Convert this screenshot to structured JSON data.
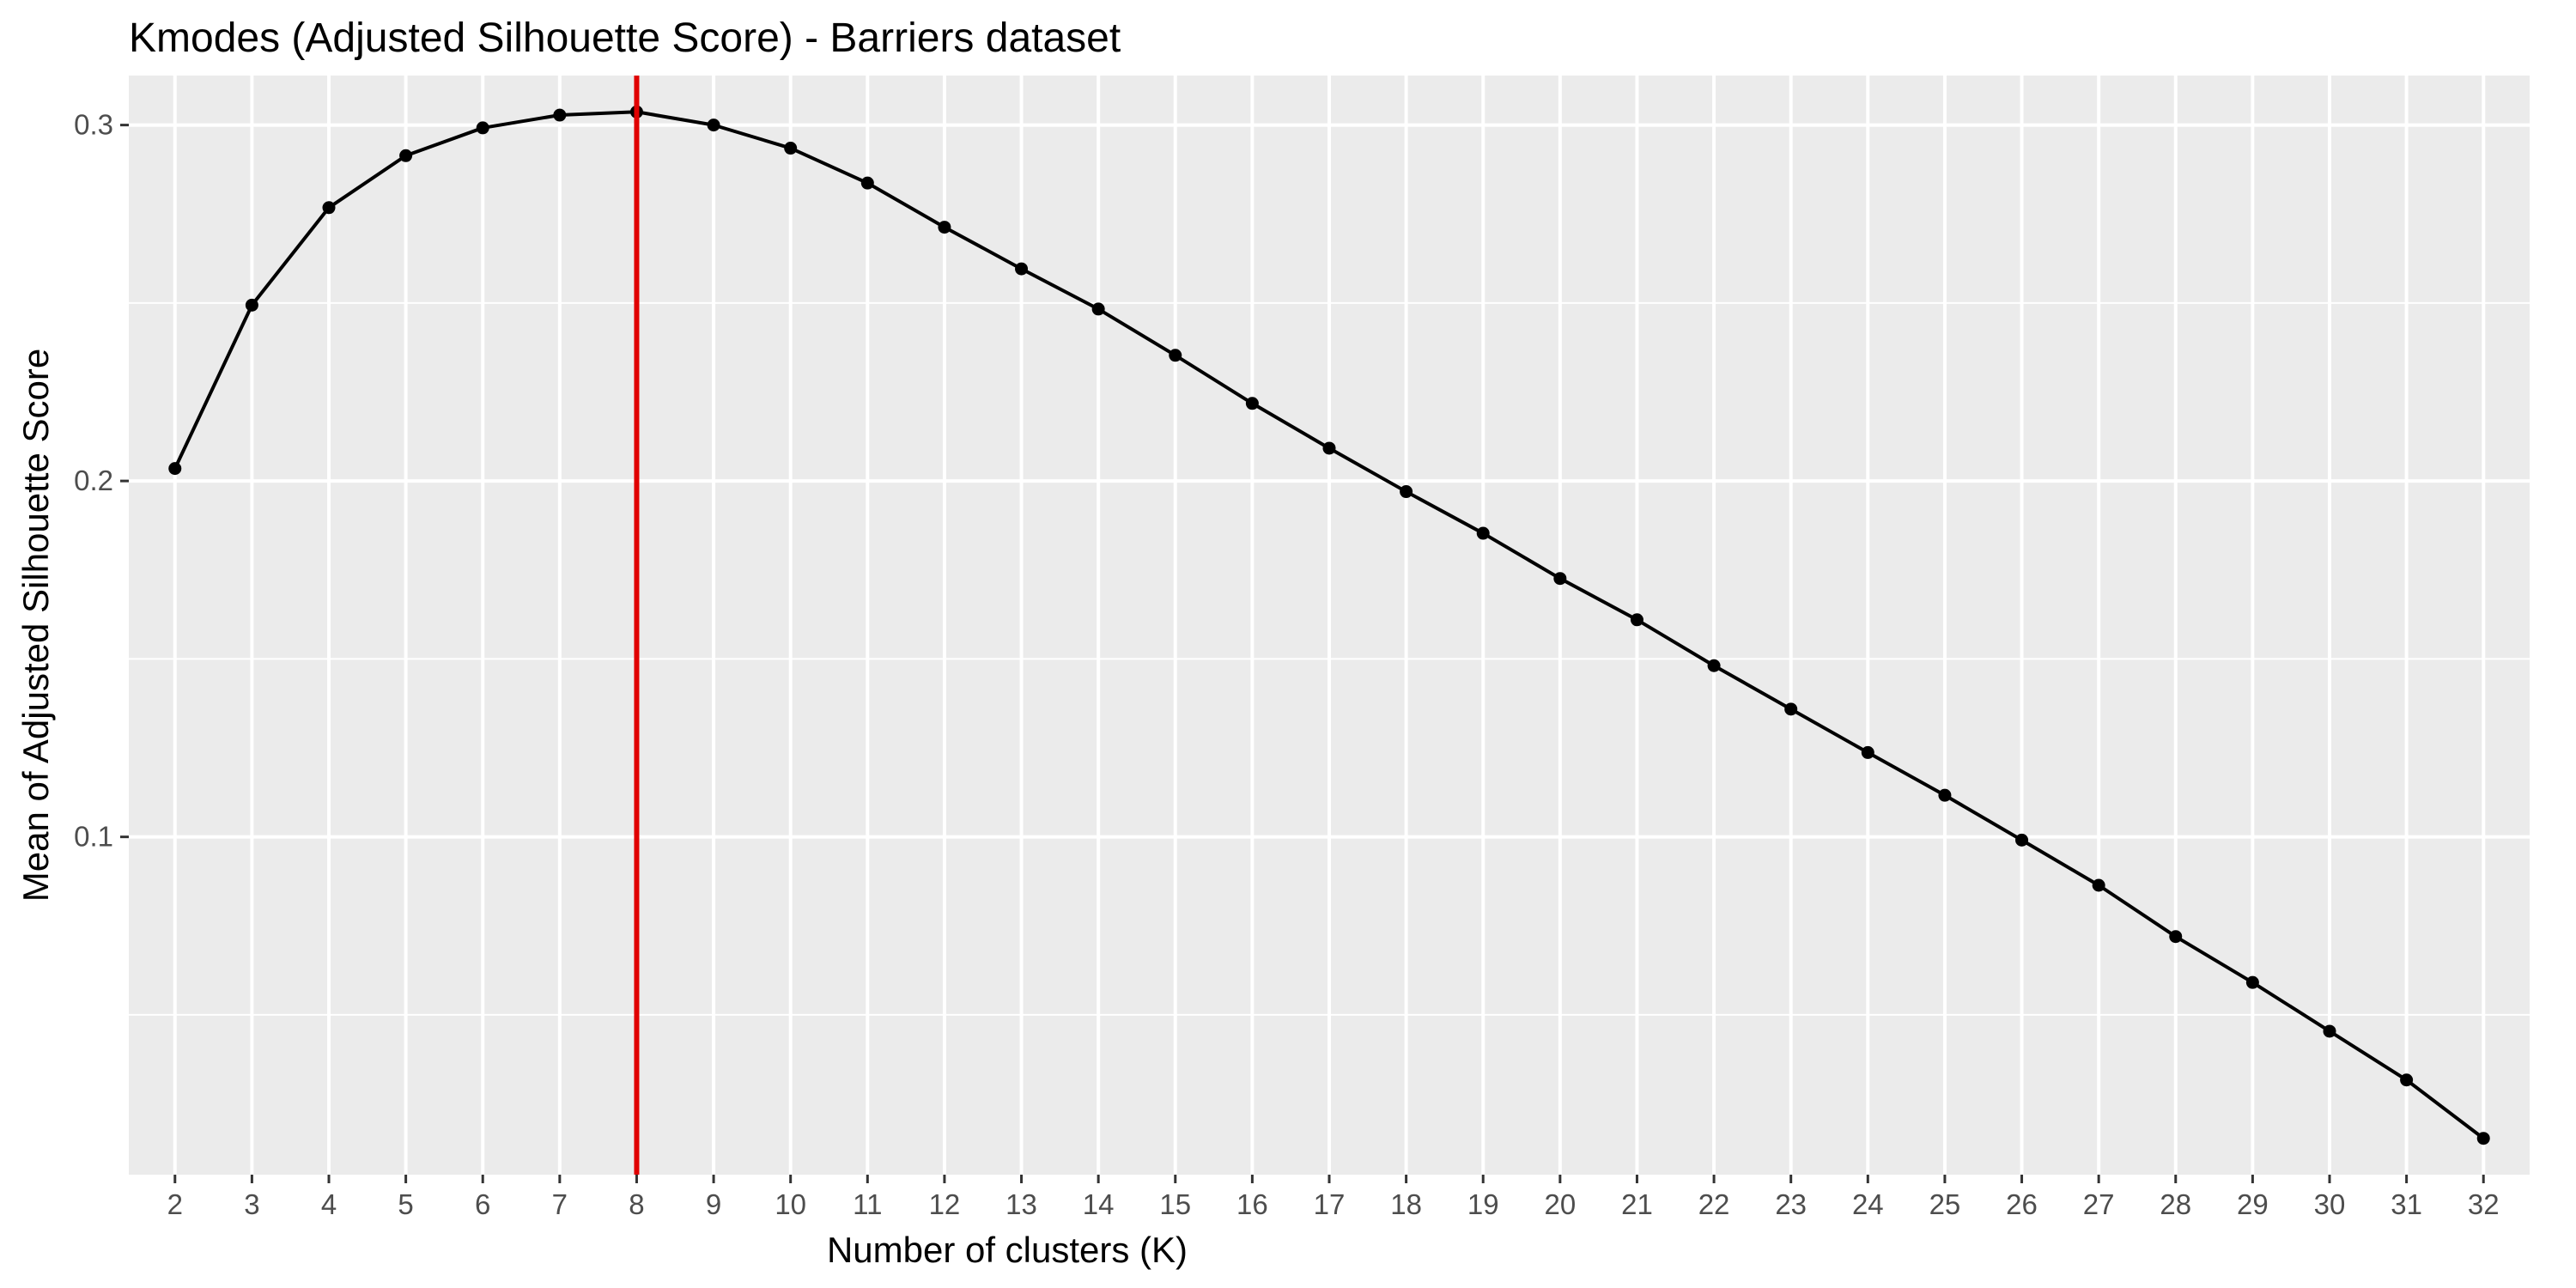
{
  "chart_data": {
    "type": "line",
    "title": "Kmodes (Adjusted Silhouette Score) - Barriers dataset",
    "xlabel": "Number of clusters (K)",
    "ylabel": "Mean of Adjusted Silhouette Score",
    "x": [
      2,
      3,
      4,
      5,
      6,
      7,
      8,
      9,
      10,
      11,
      12,
      13,
      14,
      15,
      16,
      17,
      18,
      19,
      20,
      21,
      22,
      23,
      24,
      25,
      26,
      27,
      28,
      29,
      30,
      31,
      32
    ],
    "series": [
      {
        "values": [
          0.2035,
          0.2494,
          0.2768,
          0.2914,
          0.2992,
          0.3028,
          0.3037,
          0.3,
          0.2935,
          0.2837,
          0.2713,
          0.2596,
          0.2483,
          0.2353,
          0.2218,
          0.2092,
          0.197,
          0.1853,
          0.1726,
          0.161,
          0.1481,
          0.1359,
          0.1237,
          0.1117,
          0.0991,
          0.0864,
          0.072,
          0.0591,
          0.0454,
          0.0317,
          0.0153
        ],
        "color": "#000000"
      }
    ],
    "reference_line": {
      "orientation": "vertical",
      "x": 8,
      "color": "#e00000"
    },
    "xlim": [
      1.4,
      32.6
    ],
    "ylim": [
      0.0051,
      0.3139
    ],
    "x_ticks": [
      "2",
      "3",
      "4",
      "5",
      "6",
      "7",
      "8",
      "9",
      "10",
      "11",
      "12",
      "13",
      "14",
      "15",
      "16",
      "17",
      "18",
      "19",
      "20",
      "21",
      "22",
      "23",
      "24",
      "25",
      "26",
      "27",
      "28",
      "29",
      "30",
      "31",
      "32"
    ],
    "y_ticks": [
      "0.1",
      "0.2",
      "0.3"
    ],
    "y_tick_values": [
      0.1,
      0.2,
      0.3
    ],
    "y_minor_ticks": [
      0.05,
      0.15,
      0.25
    ],
    "grid": true,
    "panel_background": "#ebebeb",
    "grid_color": "#ffffff",
    "legend": "none"
  }
}
